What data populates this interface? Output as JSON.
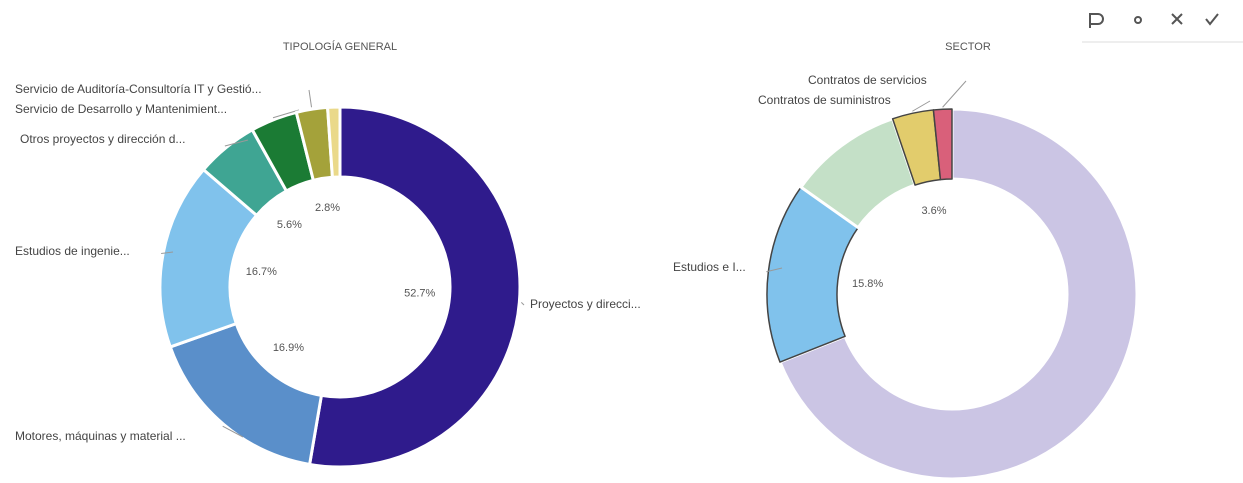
{
  "chart_data": [
    {
      "type": "donut",
      "title": "TIPOLOGÍA GENERAL",
      "categories": [
        "Proyectos y direcci...",
        "Motores, máquinas y material ...",
        "Estudios de ingenie...",
        "Otros proyectos y dirección d...",
        "Servicio de Desarrollo y Mantenimient...",
        "Servicio de Auditoría-Consultoría IT y Gestió...",
        null
      ],
      "values": [
        52.7,
        16.9,
        16.7,
        5.6,
        4.2,
        2.8,
        1.1
      ],
      "value_labels": [
        "52.7%",
        "16.9%",
        "16.7%",
        "5.6%",
        null,
        "2.8%",
        null
      ],
      "colors": [
        "#2f1b8c",
        "#5a8fca",
        "#80c2ec",
        "#3fa593",
        "#1b7b34",
        "#a4a23a",
        "#ead98a"
      ]
    },
    {
      "type": "donut",
      "title": "SECTOR",
      "categories": [
        null,
        "Estudios e I...",
        null,
        "Contratos de suministros",
        "Contratos de servicios"
      ],
      "values": [
        69,
        15.8,
        10,
        3.6,
        1.6
      ],
      "value_labels": [
        null,
        "15.8%",
        null,
        "3.6%",
        null
      ],
      "colors": [
        "#cbc5e4",
        "#80c2ec",
        "#c4e0c7",
        "#e2cc6c",
        "#d9607a"
      ],
      "highlighted": [
        false,
        true,
        false,
        true,
        true
      ]
    }
  ]
}
